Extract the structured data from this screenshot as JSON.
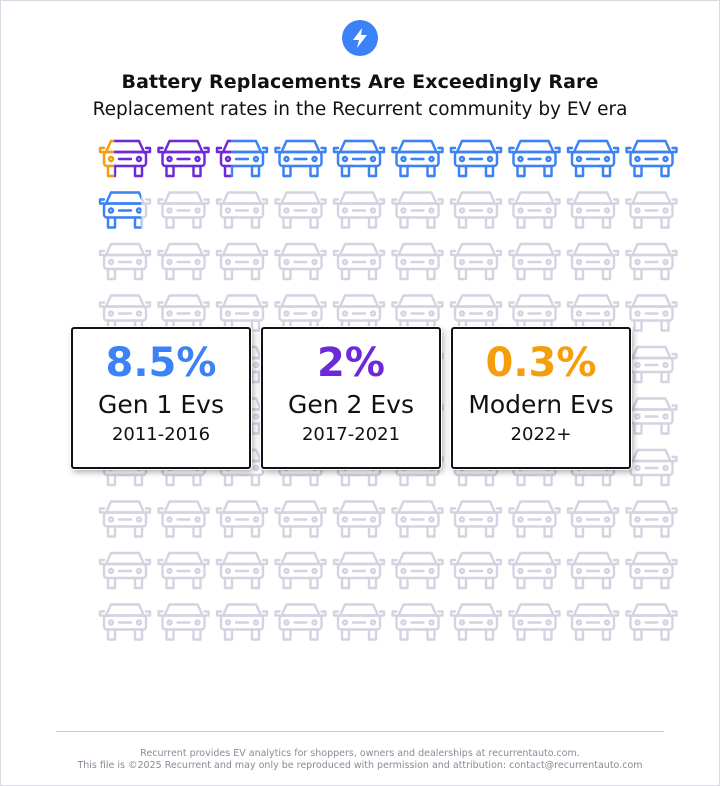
{
  "title": "Battery Replacements Are Exceedingly Rare",
  "subtitle": "Replacement rates in the Recurrent community by EV era",
  "logo_icon": "lightning-bolt-icon",
  "colors": {
    "gen1": "#3b82f6",
    "gen2": "#6d28d9",
    "modern": "#f59e0b",
    "inactive": "#d3d4e2",
    "brand": "#3b82f6"
  },
  "chart_data": {
    "type": "pictograph",
    "unit_icon": "car-icon",
    "total_icons": 100,
    "series": [
      {
        "name": "Gen 1 Evs",
        "percentage": "8.5%",
        "value": 8.5,
        "years": "2011-2016",
        "color": "#3b82f6"
      },
      {
        "name": "Gen 2 Evs",
        "percentage": "2%",
        "value": 2,
        "years": "2017-2021",
        "color": "#6d28d9"
      },
      {
        "name": "Modern Evs",
        "percentage": "0.3%",
        "value": 0.3,
        "years": "2022+",
        "color": "#f59e0b"
      }
    ]
  },
  "footer": {
    "line1": "Recurrent provides EV analytics for shoppers, owners and dealerships at recurrentauto.com.",
    "line2": "This file is ©2025 Recurrent and may only be reproduced with permission and attribution: contact@recurrentauto.com"
  }
}
